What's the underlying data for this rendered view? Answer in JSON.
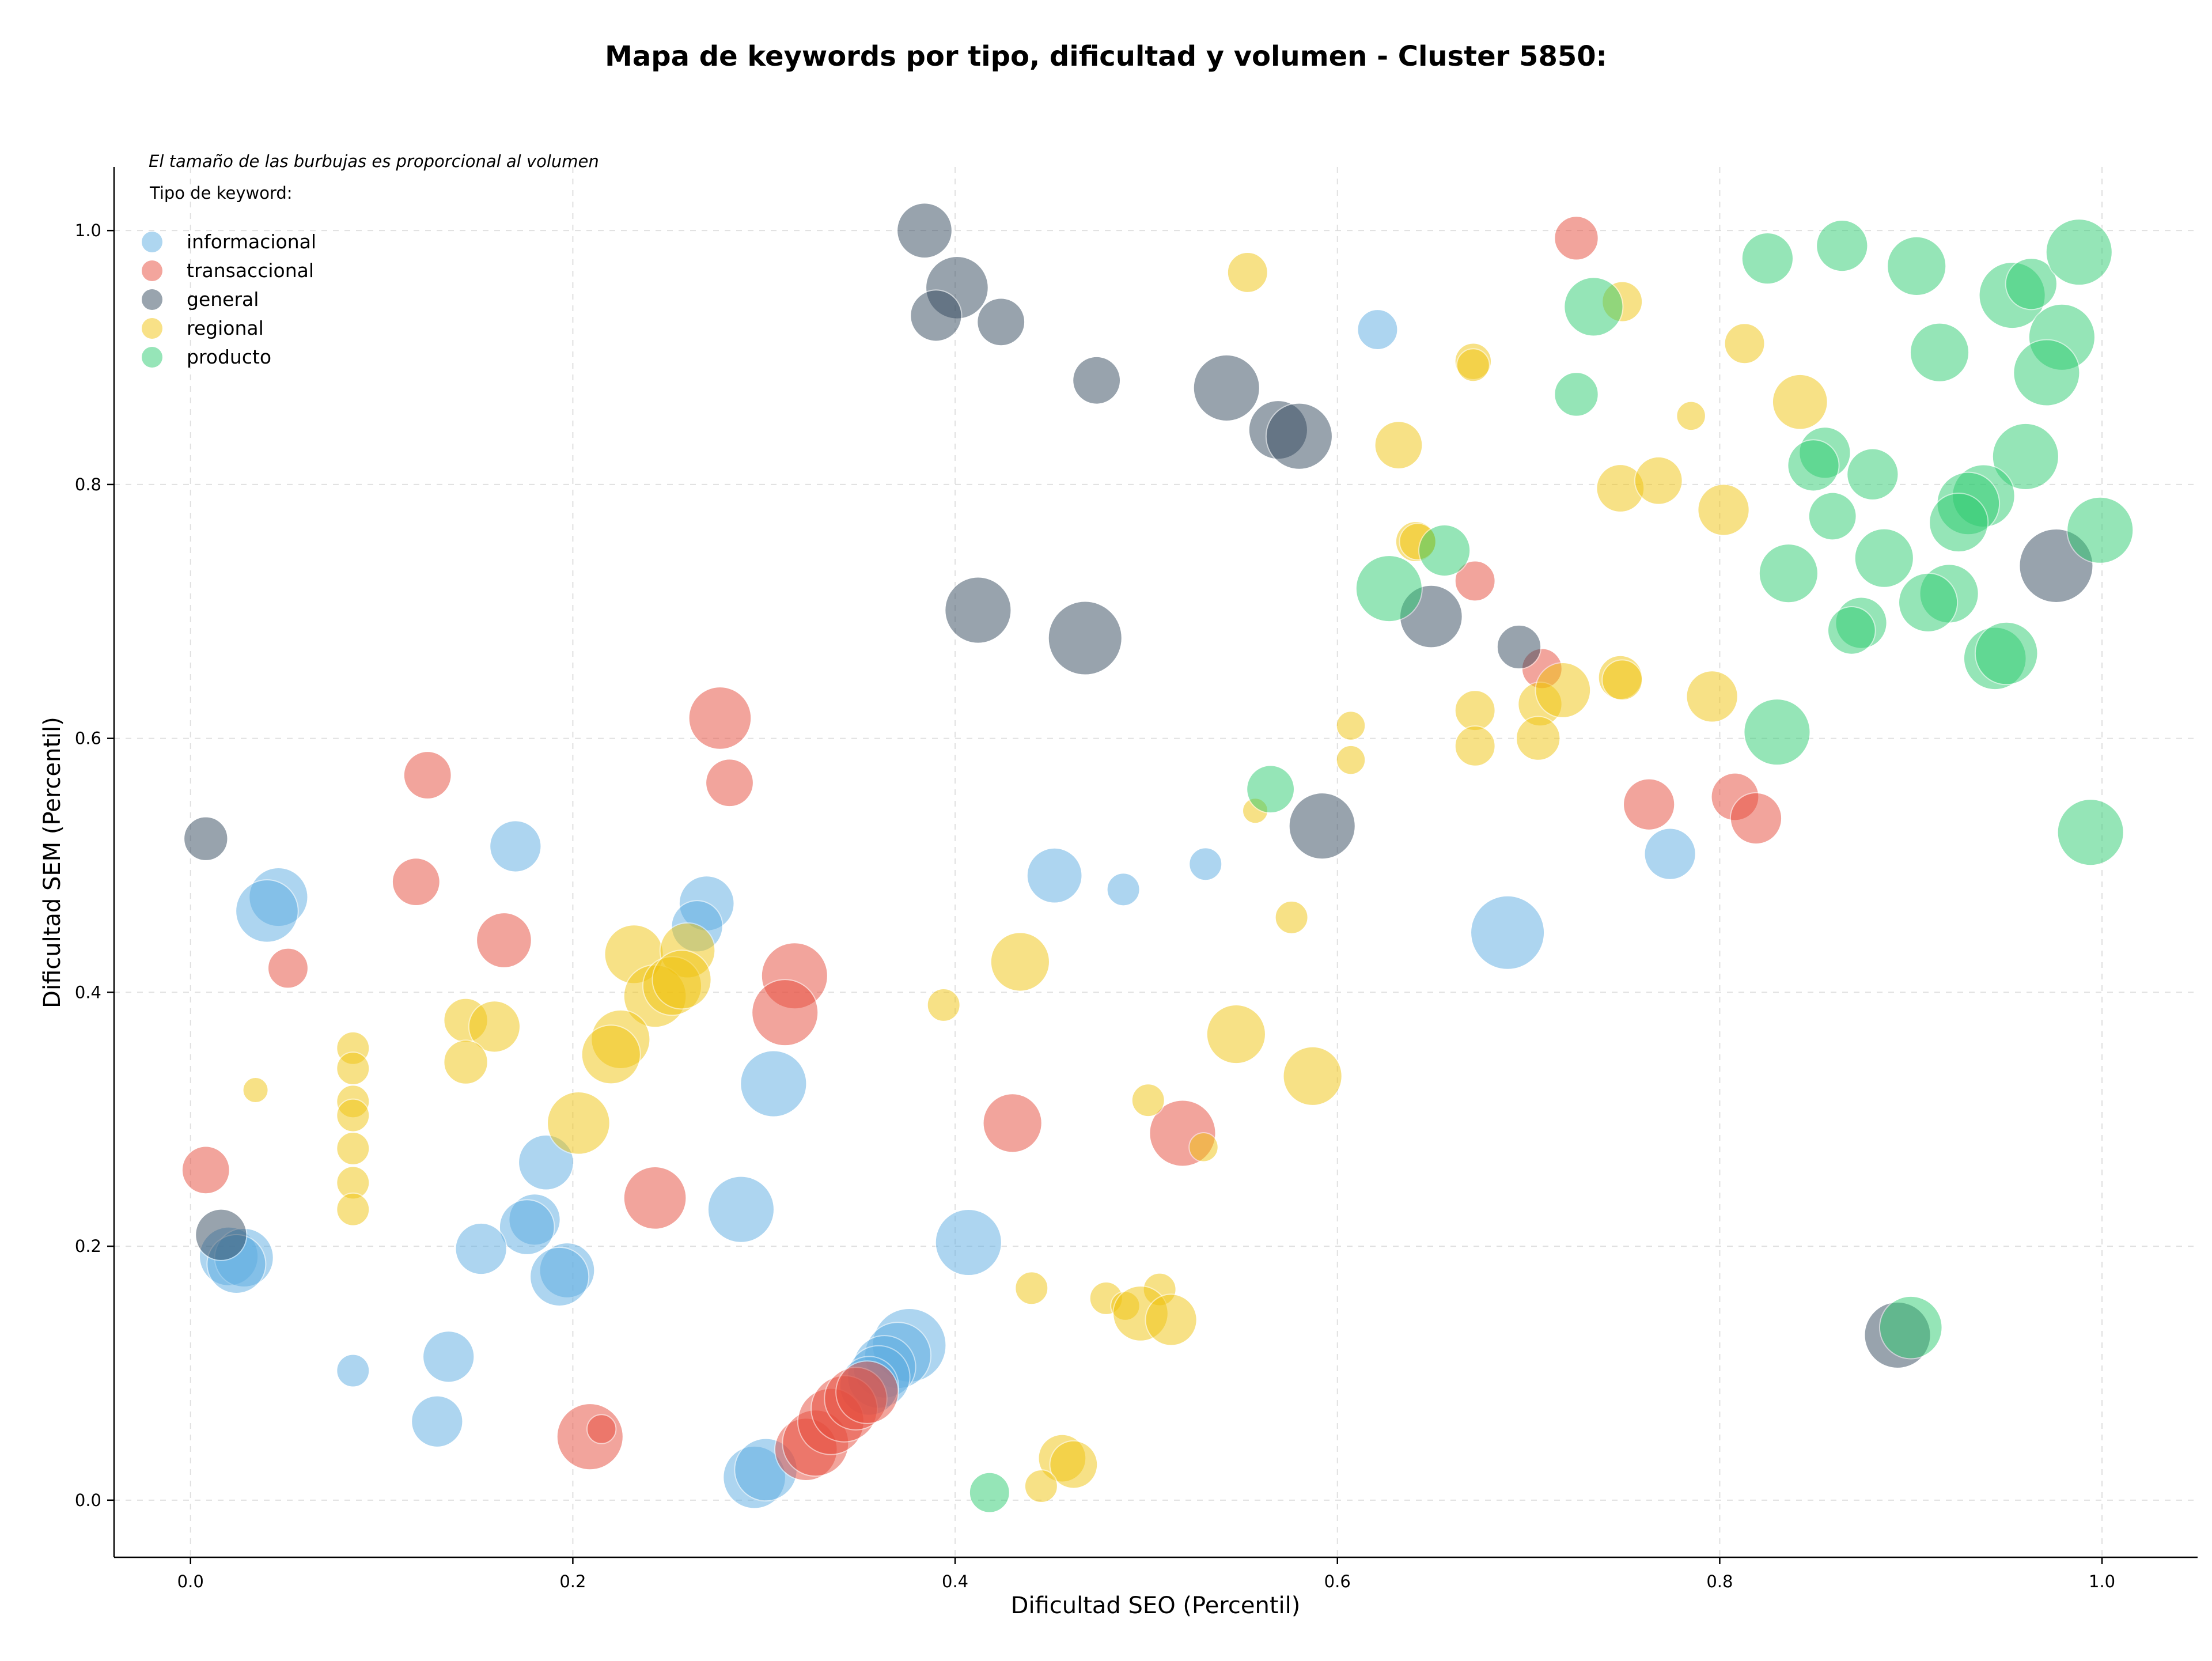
{
  "chart_data": {
    "type": "scatter",
    "title": "Mapa de keywords por tipo, dificultad y volumen - Cluster 5850:",
    "xlabel": "Dificultad SEO (Percentil)",
    "ylabel": "Dificultad SEM (Percentil)",
    "xlim": [
      -0.04,
      1.05
    ],
    "ylim": [
      -0.045,
      1.05
    ],
    "x_ticks": [
      0.0,
      0.2,
      0.4,
      0.6,
      0.8,
      1.0
    ],
    "y_ticks": [
      0.0,
      0.2,
      0.4,
      0.6,
      0.8,
      1.0
    ],
    "x_tick_labels": [
      "0.0",
      "0.2",
      "0.4",
      "0.6",
      "0.8",
      "1.0"
    ],
    "y_tick_labels": [
      "0.0",
      "0.2",
      "0.4",
      "0.6",
      "0.8",
      "1.0"
    ],
    "grid": true,
    "legend_placement": "top-left",
    "annotation": "El tamaño de las burbujas es proporcional al volumen",
    "legend_title": "Tipo de keyword:",
    "series": [
      {
        "name": "informacional",
        "color": "#5DADE2",
        "points": [
          {
            "x": 0.046,
            "y": 0.475,
            "s": 0.8
          },
          {
            "x": 0.04,
            "y": 0.464,
            "s": 0.85
          },
          {
            "x": 0.17,
            "y": 0.515,
            "s": 0.7
          },
          {
            "x": 0.27,
            "y": 0.47,
            "s": 0.75
          },
          {
            "x": 0.265,
            "y": 0.452,
            "s": 0.7
          },
          {
            "x": 0.305,
            "y": 0.328,
            "s": 0.9
          },
          {
            "x": 0.186,
            "y": 0.266,
            "s": 0.75
          },
          {
            "x": 0.18,
            "y": 0.221,
            "s": 0.7
          },
          {
            "x": 0.176,
            "y": 0.215,
            "s": 0.75
          },
          {
            "x": 0.152,
            "y": 0.198,
            "s": 0.7
          },
          {
            "x": 0.02,
            "y": 0.192,
            "s": 0.8
          },
          {
            "x": 0.028,
            "y": 0.191,
            "s": 0.8
          },
          {
            "x": 0.024,
            "y": 0.186,
            "s": 0.8
          },
          {
            "x": 0.197,
            "y": 0.181,
            "s": 0.75
          },
          {
            "x": 0.193,
            "y": 0.176,
            "s": 0.8
          },
          {
            "x": 0.288,
            "y": 0.229,
            "s": 0.9
          },
          {
            "x": 0.407,
            "y": 0.203,
            "s": 0.9
          },
          {
            "x": 0.135,
            "y": 0.113,
            "s": 0.7
          },
          {
            "x": 0.085,
            "y": 0.102,
            "s": 0.45
          },
          {
            "x": 0.129,
            "y": 0.062,
            "s": 0.7
          },
          {
            "x": 0.295,
            "y": 0.018,
            "s": 0.85
          },
          {
            "x": 0.301,
            "y": 0.024,
            "s": 0.85
          },
          {
            "x": 0.376,
            "y": 0.122,
            "s": 1.0
          },
          {
            "x": 0.37,
            "y": 0.114,
            "s": 0.9
          },
          {
            "x": 0.363,
            "y": 0.105,
            "s": 0.85
          },
          {
            "x": 0.36,
            "y": 0.097,
            "s": 0.85
          },
          {
            "x": 0.355,
            "y": 0.09,
            "s": 0.8
          },
          {
            "x": 0.452,
            "y": 0.492,
            "s": 0.75
          },
          {
            "x": 0.488,
            "y": 0.481,
            "s": 0.45
          },
          {
            "x": 0.531,
            "y": 0.501,
            "s": 0.45
          },
          {
            "x": 0.621,
            "y": 0.922,
            "s": 0.55
          },
          {
            "x": 0.689,
            "y": 0.447,
            "s": 1.0
          },
          {
            "x": 0.774,
            "y": 0.509,
            "s": 0.7
          }
        ]
      },
      {
        "name": "transaccional",
        "color": "#E74C3C",
        "points": [
          {
            "x": 0.124,
            "y": 0.571,
            "s": 0.65
          },
          {
            "x": 0.118,
            "y": 0.487,
            "s": 0.65
          },
          {
            "x": 0.164,
            "y": 0.441,
            "s": 0.75
          },
          {
            "x": 0.051,
            "y": 0.419,
            "s": 0.55
          },
          {
            "x": 0.008,
            "y": 0.26,
            "s": 0.65
          },
          {
            "x": 0.277,
            "y": 0.616,
            "s": 0.85
          },
          {
            "x": 0.282,
            "y": 0.565,
            "s": 0.65
          },
          {
            "x": 0.316,
            "y": 0.413,
            "s": 0.9
          },
          {
            "x": 0.311,
            "y": 0.384,
            "s": 0.9
          },
          {
            "x": 0.243,
            "y": 0.238,
            "s": 0.85
          },
          {
            "x": 0.43,
            "y": 0.297,
            "s": 0.8
          },
          {
            "x": 0.519,
            "y": 0.289,
            "s": 0.9
          },
          {
            "x": 0.209,
            "y": 0.05,
            "s": 0.9
          },
          {
            "x": 0.215,
            "y": 0.056,
            "s": 0.4
          },
          {
            "x": 0.322,
            "y": 0.04,
            "s": 0.85
          },
          {
            "x": 0.327,
            "y": 0.045,
            "s": 0.9
          },
          {
            "x": 0.335,
            "y": 0.062,
            "s": 0.9
          },
          {
            "x": 0.342,
            "y": 0.072,
            "s": 0.9
          },
          {
            "x": 0.348,
            "y": 0.08,
            "s": 0.85
          },
          {
            "x": 0.354,
            "y": 0.085,
            "s": 0.85
          },
          {
            "x": 0.725,
            "y": 0.994,
            "s": 0.6
          },
          {
            "x": 0.672,
            "y": 0.724,
            "s": 0.55
          },
          {
            "x": 0.707,
            "y": 0.655,
            "s": 0.55
          },
          {
            "x": 0.763,
            "y": 0.548,
            "s": 0.7
          },
          {
            "x": 0.808,
            "y": 0.554,
            "s": 0.65
          },
          {
            "x": 0.819,
            "y": 0.537,
            "s": 0.7
          }
        ]
      },
      {
        "name": "general",
        "color": "#34495E",
        "points": [
          {
            "x": 0.384,
            "y": 1.0,
            "s": 0.75
          },
          {
            "x": 0.401,
            "y": 0.955,
            "s": 0.85
          },
          {
            "x": 0.39,
            "y": 0.933,
            "s": 0.7
          },
          {
            "x": 0.424,
            "y": 0.928,
            "s": 0.65
          },
          {
            "x": 0.474,
            "y": 0.882,
            "s": 0.65
          },
          {
            "x": 0.542,
            "y": 0.876,
            "s": 0.9
          },
          {
            "x": 0.569,
            "y": 0.843,
            "s": 0.8
          },
          {
            "x": 0.58,
            "y": 0.838,
            "s": 0.9
          },
          {
            "x": 0.412,
            "y": 0.701,
            "s": 0.9
          },
          {
            "x": 0.468,
            "y": 0.679,
            "s": 1.0
          },
          {
            "x": 0.649,
            "y": 0.696,
            "s": 0.85
          },
          {
            "x": 0.695,
            "y": 0.672,
            "s": 0.6
          },
          {
            "x": 0.592,
            "y": 0.531,
            "s": 0.9
          },
          {
            "x": 0.008,
            "y": 0.521,
            "s": 0.6
          },
          {
            "x": 0.016,
            "y": 0.209,
            "s": 0.7
          },
          {
            "x": 0.976,
            "y": 0.736,
            "s": 1.0
          },
          {
            "x": 0.893,
            "y": 0.13,
            "s": 0.9
          }
        ]
      },
      {
        "name": "regional",
        "color": "#F1C40F",
        "points": [
          {
            "x": 0.553,
            "y": 0.967,
            "s": 0.55
          },
          {
            "x": 0.749,
            "y": 0.944,
            "s": 0.55
          },
          {
            "x": 0.671,
            "y": 0.897,
            "s": 0.5
          },
          {
            "x": 0.671,
            "y": 0.894,
            "s": 0.45
          },
          {
            "x": 0.813,
            "y": 0.911,
            "s": 0.55
          },
          {
            "x": 0.785,
            "y": 0.854,
            "s": 0.4
          },
          {
            "x": 0.842,
            "y": 0.865,
            "s": 0.75
          },
          {
            "x": 0.632,
            "y": 0.831,
            "s": 0.65
          },
          {
            "x": 0.748,
            "y": 0.797,
            "s": 0.65
          },
          {
            "x": 0.768,
            "y": 0.803,
            "s": 0.65
          },
          {
            "x": 0.802,
            "y": 0.78,
            "s": 0.7
          },
          {
            "x": 0.641,
            "y": 0.755,
            "s": 0.55
          },
          {
            "x": 0.642,
            "y": 0.755,
            "s": 0.5
          },
          {
            "x": 0.748,
            "y": 0.648,
            "s": 0.6
          },
          {
            "x": 0.749,
            "y": 0.646,
            "s": 0.55
          },
          {
            "x": 0.672,
            "y": 0.622,
            "s": 0.55
          },
          {
            "x": 0.706,
            "y": 0.627,
            "s": 0.6
          },
          {
            "x": 0.718,
            "y": 0.638,
            "s": 0.75
          },
          {
            "x": 0.796,
            "y": 0.633,
            "s": 0.7
          },
          {
            "x": 0.672,
            "y": 0.594,
            "s": 0.55
          },
          {
            "x": 0.705,
            "y": 0.6,
            "s": 0.6
          },
          {
            "x": 0.607,
            "y": 0.61,
            "s": 0.4
          },
          {
            "x": 0.607,
            "y": 0.583,
            "s": 0.4
          },
          {
            "x": 0.557,
            "y": 0.543,
            "s": 0.35
          },
          {
            "x": 0.576,
            "y": 0.459,
            "s": 0.45
          },
          {
            "x": 0.434,
            "y": 0.424,
            "s": 0.8
          },
          {
            "x": 0.394,
            "y": 0.39,
            "s": 0.45
          },
          {
            "x": 0.547,
            "y": 0.367,
            "s": 0.8
          },
          {
            "x": 0.587,
            "y": 0.334,
            "s": 0.8
          },
          {
            "x": 0.501,
            "y": 0.315,
            "s": 0.45
          },
          {
            "x": 0.53,
            "y": 0.278,
            "s": 0.4
          },
          {
            "x": 0.232,
            "y": 0.43,
            "s": 0.8
          },
          {
            "x": 0.26,
            "y": 0.433,
            "s": 0.75
          },
          {
            "x": 0.243,
            "y": 0.397,
            "s": 0.85
          },
          {
            "x": 0.252,
            "y": 0.405,
            "s": 0.8
          },
          {
            "x": 0.257,
            "y": 0.41,
            "s": 0.8
          },
          {
            "x": 0.144,
            "y": 0.378,
            "s": 0.6
          },
          {
            "x": 0.159,
            "y": 0.373,
            "s": 0.7
          },
          {
            "x": 0.144,
            "y": 0.345,
            "s": 0.6
          },
          {
            "x": 0.225,
            "y": 0.363,
            "s": 0.8
          },
          {
            "x": 0.22,
            "y": 0.351,
            "s": 0.8
          },
          {
            "x": 0.203,
            "y": 0.297,
            "s": 0.85
          },
          {
            "x": 0.085,
            "y": 0.356,
            "s": 0.45
          },
          {
            "x": 0.085,
            "y": 0.34,
            "s": 0.45
          },
          {
            "x": 0.085,
            "y": 0.314,
            "s": 0.45
          },
          {
            "x": 0.085,
            "y": 0.303,
            "s": 0.45
          },
          {
            "x": 0.085,
            "y": 0.277,
            "s": 0.45
          },
          {
            "x": 0.085,
            "y": 0.25,
            "s": 0.45
          },
          {
            "x": 0.085,
            "y": 0.229,
            "s": 0.45
          },
          {
            "x": 0.034,
            "y": 0.323,
            "s": 0.35
          },
          {
            "x": 0.44,
            "y": 0.167,
            "s": 0.45
          },
          {
            "x": 0.479,
            "y": 0.159,
            "s": 0.45
          },
          {
            "x": 0.489,
            "y": 0.153,
            "s": 0.4
          },
          {
            "x": 0.507,
            "y": 0.166,
            "s": 0.45
          },
          {
            "x": 0.497,
            "y": 0.147,
            "s": 0.75
          },
          {
            "x": 0.513,
            "y": 0.142,
            "s": 0.7
          },
          {
            "x": 0.456,
            "y": 0.033,
            "s": 0.65
          },
          {
            "x": 0.462,
            "y": 0.028,
            "s": 0.65
          },
          {
            "x": 0.445,
            "y": 0.011,
            "s": 0.45
          }
        ]
      },
      {
        "name": "producto",
        "color": "#2ECC71",
        "points": [
          {
            "x": 0.825,
            "y": 0.978,
            "s": 0.7
          },
          {
            "x": 0.864,
            "y": 0.988,
            "s": 0.7
          },
          {
            "x": 0.903,
            "y": 0.972,
            "s": 0.8
          },
          {
            "x": 0.953,
            "y": 0.949,
            "s": 0.9
          },
          {
            "x": 0.963,
            "y": 0.958,
            "s": 0.7
          },
          {
            "x": 0.988,
            "y": 0.983,
            "s": 0.9
          },
          {
            "x": 0.734,
            "y": 0.94,
            "s": 0.8
          },
          {
            "x": 0.725,
            "y": 0.871,
            "s": 0.6
          },
          {
            "x": 0.915,
            "y": 0.904,
            "s": 0.8
          },
          {
            "x": 0.979,
            "y": 0.916,
            "s": 0.9
          },
          {
            "x": 0.971,
            "y": 0.888,
            "s": 0.9
          },
          {
            "x": 0.96,
            "y": 0.822,
            "s": 0.9
          },
          {
            "x": 0.855,
            "y": 0.825,
            "s": 0.7
          },
          {
            "x": 0.849,
            "y": 0.815,
            "s": 0.7
          },
          {
            "x": 0.88,
            "y": 0.808,
            "s": 0.7
          },
          {
            "x": 0.938,
            "y": 0.791,
            "s": 0.85
          },
          {
            "x": 0.93,
            "y": 0.785,
            "s": 0.85
          },
          {
            "x": 0.925,
            "y": 0.77,
            "s": 0.8
          },
          {
            "x": 0.859,
            "y": 0.775,
            "s": 0.65
          },
          {
            "x": 0.999,
            "y": 0.764,
            "s": 0.9
          },
          {
            "x": 0.886,
            "y": 0.742,
            "s": 0.8
          },
          {
            "x": 0.836,
            "y": 0.73,
            "s": 0.8
          },
          {
            "x": 0.92,
            "y": 0.714,
            "s": 0.8
          },
          {
            "x": 0.909,
            "y": 0.707,
            "s": 0.8
          },
          {
            "x": 0.874,
            "y": 0.691,
            "s": 0.7
          },
          {
            "x": 0.869,
            "y": 0.685,
            "s": 0.65
          },
          {
            "x": 0.627,
            "y": 0.718,
            "s": 0.9
          },
          {
            "x": 0.656,
            "y": 0.748,
            "s": 0.7
          },
          {
            "x": 0.944,
            "y": 0.663,
            "s": 0.85
          },
          {
            "x": 0.95,
            "y": 0.667,
            "s": 0.85
          },
          {
            "x": 0.83,
            "y": 0.605,
            "s": 0.9
          },
          {
            "x": 0.565,
            "y": 0.56,
            "s": 0.65
          },
          {
            "x": 0.994,
            "y": 0.526,
            "s": 0.9
          },
          {
            "x": 0.9,
            "y": 0.136,
            "s": 0.85
          },
          {
            "x": 0.418,
            "y": 0.006,
            "s": 0.55
          }
        ]
      }
    ]
  }
}
